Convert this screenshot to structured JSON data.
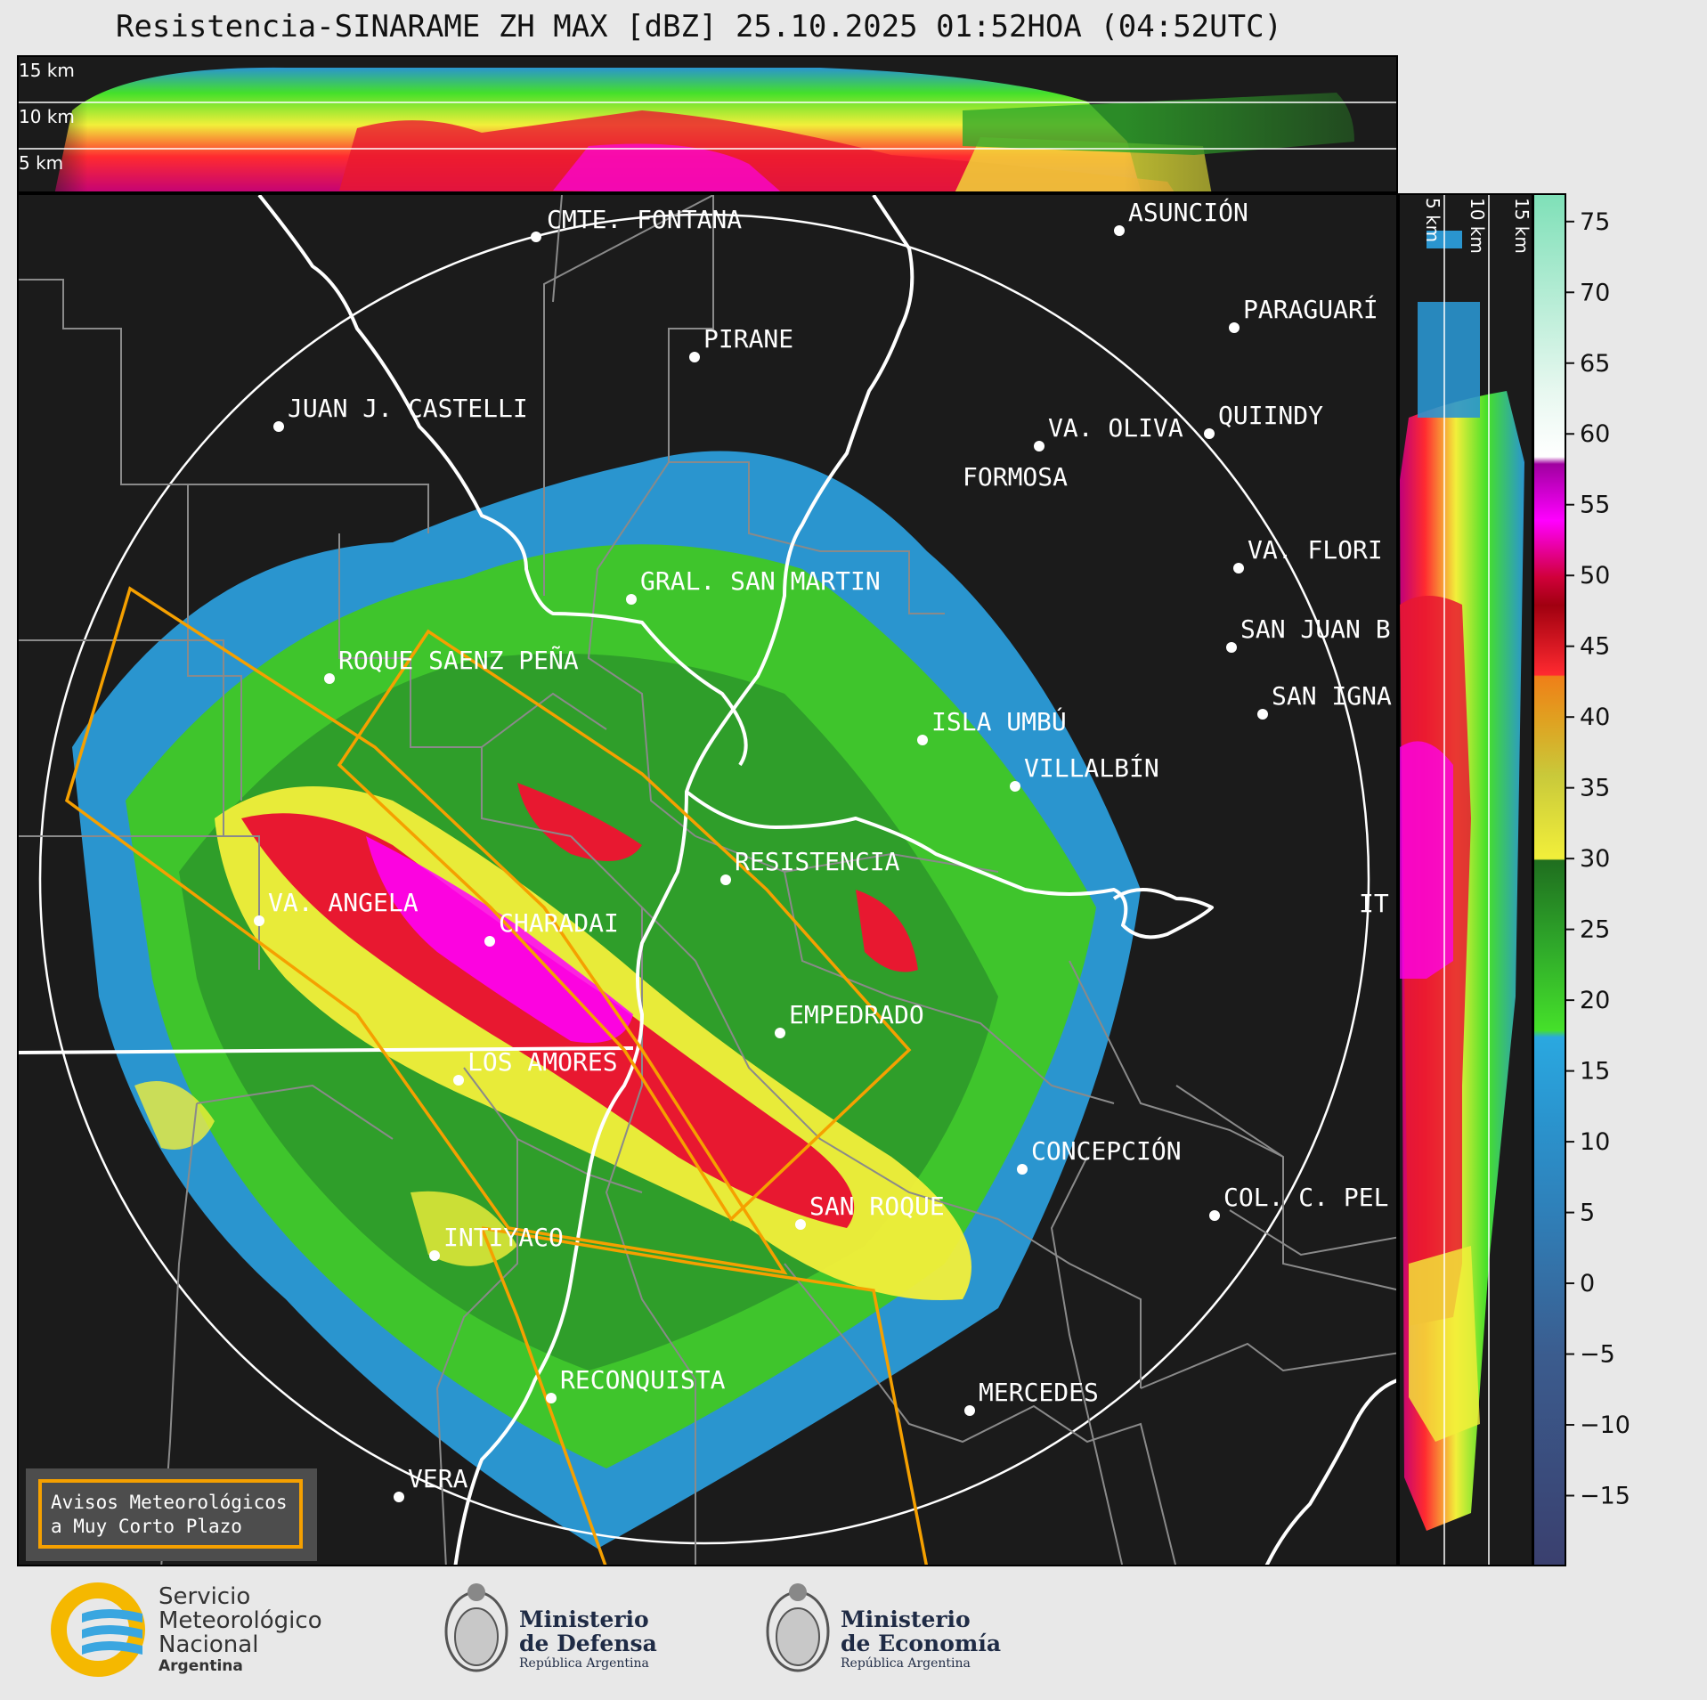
{
  "title": "Resistencia-SINARAME ZH MAX [dBZ] 25.10.2025 01:52HOA (04:52UTC)",
  "top_xsection": {
    "height_labels": [
      "15 km",
      "10 km",
      "5 km"
    ]
  },
  "right_xsection": {
    "height_labels": [
      "5 km",
      "10 km",
      "15 km"
    ]
  },
  "colorbar": {
    "unit": "dBZ",
    "ticks": [
      75,
      70,
      65,
      60,
      55,
      50,
      45,
      40,
      35,
      30,
      25,
      20,
      15,
      10,
      5,
      0,
      "−5",
      "−10",
      "−15"
    ],
    "range": [
      -20,
      77
    ],
    "stops": [
      {
        "v": -20,
        "c": "#3a3f6e"
      },
      {
        "v": -5,
        "c": "#3b5c8e"
      },
      {
        "v": 5,
        "c": "#2f7fb8"
      },
      {
        "v": 12,
        "c": "#2a95cf"
      },
      {
        "v": 17.5,
        "c": "#2aa8e0"
      },
      {
        "v": 18,
        "c": "#45e02a"
      },
      {
        "v": 24,
        "c": "#2fa82a"
      },
      {
        "v": 30,
        "c": "#1f6e1f"
      },
      {
        "v": 30.1,
        "c": "#f2ef3a"
      },
      {
        "v": 36,
        "c": "#c9c93a"
      },
      {
        "v": 40,
        "c": "#e0a020"
      },
      {
        "v": 43,
        "c": "#ef7f18"
      },
      {
        "v": 43.1,
        "c": "#ff2a30"
      },
      {
        "v": 48,
        "c": "#a00010"
      },
      {
        "v": 50,
        "c": "#d0003a"
      },
      {
        "v": 54,
        "c": "#ff00ff"
      },
      {
        "v": 58,
        "c": "#a000a0"
      },
      {
        "v": 58.5,
        "c": "#ffffff"
      },
      {
        "v": 63,
        "c": "#e8f8f0"
      },
      {
        "v": 77,
        "c": "#7fe0b8"
      }
    ]
  },
  "cities": [
    {
      "name": "CMTE. FONTANA"
    },
    {
      "name": "ASUNCIÓN"
    },
    {
      "name": "PARAGUARÍ"
    },
    {
      "name": "PIRANE"
    },
    {
      "name": "JUAN J. CASTELLI"
    },
    {
      "name": "VA. OLIVA"
    },
    {
      "name": "QUIINDY"
    },
    {
      "name": "FORMOSA"
    },
    {
      "name": "VA. FLORI"
    },
    {
      "name": "GRAL. SAN MARTIN"
    },
    {
      "name": "SAN JUAN B"
    },
    {
      "name": "SAN IGNA"
    },
    {
      "name": "ROQUE SAENZ PEÑA"
    },
    {
      "name": "ISLA UMBÚ"
    },
    {
      "name": "VILLALBÍN"
    },
    {
      "name": "RESISTENCIA"
    },
    {
      "name": "IT"
    },
    {
      "name": "VA. ANGELA"
    },
    {
      "name": "CHARADAI"
    },
    {
      "name": "EMPEDRADO"
    },
    {
      "name": "LOS AMORES"
    },
    {
      "name": "CONCEPCIÓN"
    },
    {
      "name": "SAN ROQUE"
    },
    {
      "name": "COL. C. PEL"
    },
    {
      "name": "INTIYACO"
    },
    {
      "name": "RECONQUISTA"
    },
    {
      "name": "MERCEDES"
    },
    {
      "name": "VERA"
    }
  ],
  "aviso": {
    "line1": "Avisos Meteorológicos",
    "line2": "a Muy Corto Plazo"
  },
  "logos": {
    "smn": [
      "Servicio",
      "Meteorológico",
      "Nacional",
      "Argentina"
    ],
    "defensa": [
      "Ministerio",
      "de Defensa",
      "República Argentina"
    ],
    "economia": [
      "Ministerio",
      "de Economía",
      "República Argentina"
    ]
  },
  "colors": {
    "background": "#1b1b1b",
    "warning_polygon": "#f5a000",
    "rivers": "#ffffff",
    "borders": "#8a8a8a"
  }
}
